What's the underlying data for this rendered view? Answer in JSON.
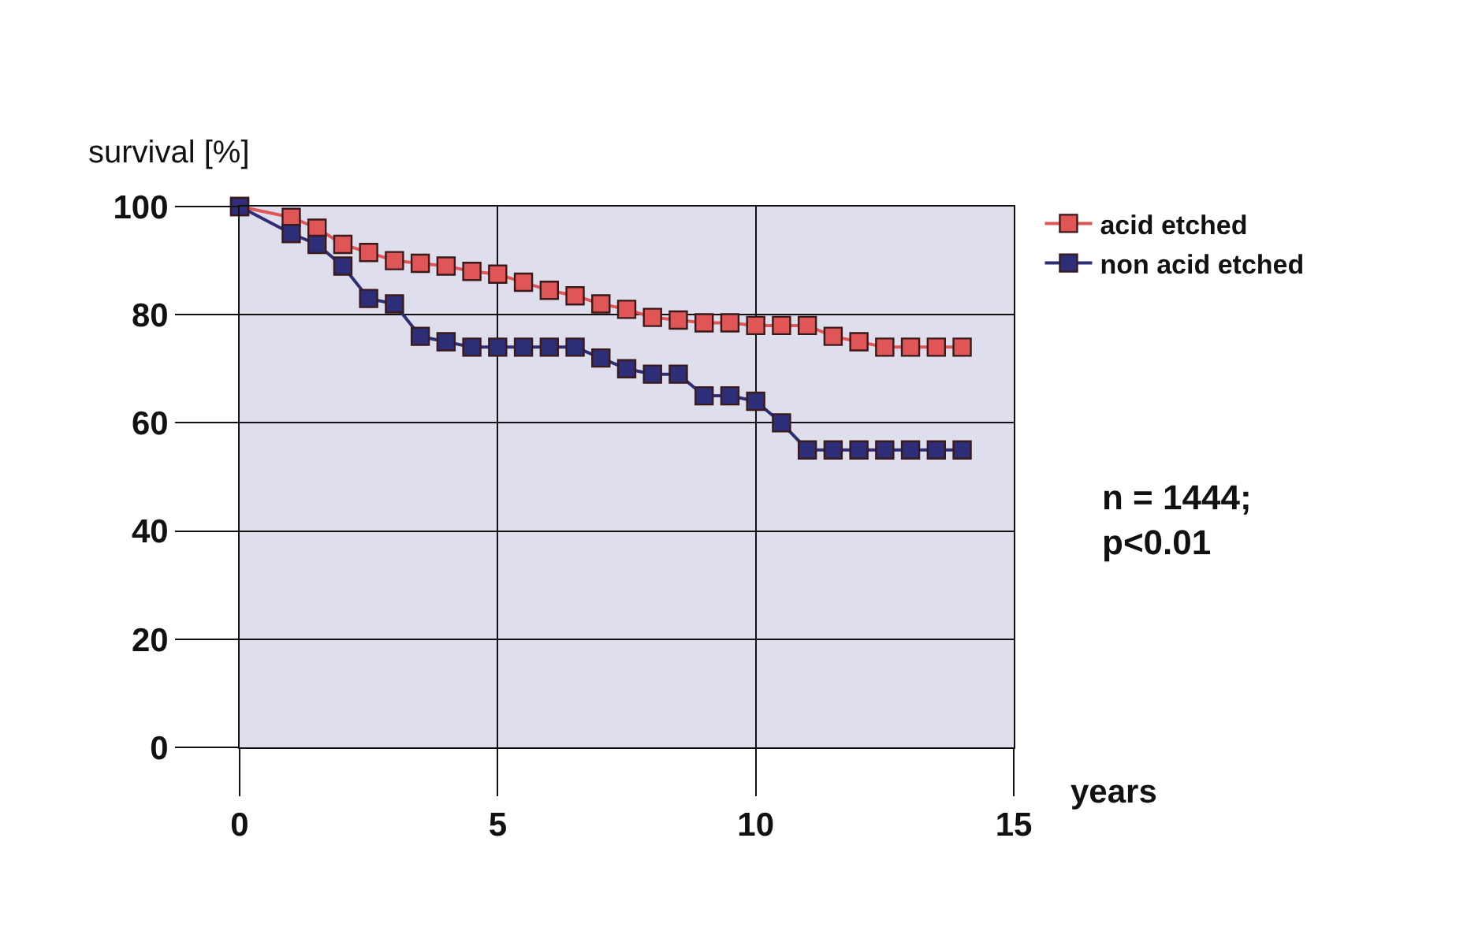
{
  "chart_data": {
    "type": "line",
    "xlabel": "years",
    "ylabel": "survival [%]",
    "series": [
      {
        "name": "acid etched",
        "color": "#e05555",
        "x": [
          0,
          1,
          1.5,
          2,
          2.5,
          3,
          3.5,
          4,
          4.5,
          5,
          5.5,
          6,
          6.5,
          7,
          7.5,
          8,
          8.5,
          9,
          9.5,
          10,
          10.5,
          11,
          11.5,
          12,
          12.5,
          13,
          13.5,
          14
        ],
        "values": [
          100,
          98,
          96,
          93,
          91.5,
          90,
          89.5,
          89,
          88,
          87.5,
          86,
          84.5,
          83.5,
          82,
          81,
          79.5,
          79,
          78.5,
          78.5,
          78,
          78,
          78,
          76,
          75,
          74,
          74,
          74,
          74
        ]
      },
      {
        "name": "non acid etched",
        "color": "#2e2e78",
        "x": [
          0,
          1,
          1.5,
          2,
          2.5,
          3,
          3.5,
          4,
          4.5,
          5,
          5.5,
          6,
          6.5,
          7,
          7.5,
          8,
          8.5,
          9,
          9.5,
          10,
          10.5,
          11,
          11.5,
          12,
          12.5,
          13,
          13.5,
          14
        ],
        "values": [
          100,
          95,
          93,
          89,
          83,
          82,
          76,
          75,
          74,
          74,
          74,
          74,
          74,
          72,
          70,
          69,
          69,
          65,
          65,
          64,
          60,
          55,
          55,
          55,
          55,
          55,
          55,
          55
        ]
      }
    ],
    "xlim": [
      0,
      15
    ],
    "xticks": [
      0,
      5,
      10,
      15
    ],
    "ylim": [
      0,
      100
    ],
    "yticks": [
      0,
      20,
      40,
      60,
      80,
      100
    ],
    "grid": true,
    "legend": "top right",
    "marker": "square",
    "line_style": "solid",
    "annotations": [
      "n = 1444;\np<0.01"
    ]
  }
}
